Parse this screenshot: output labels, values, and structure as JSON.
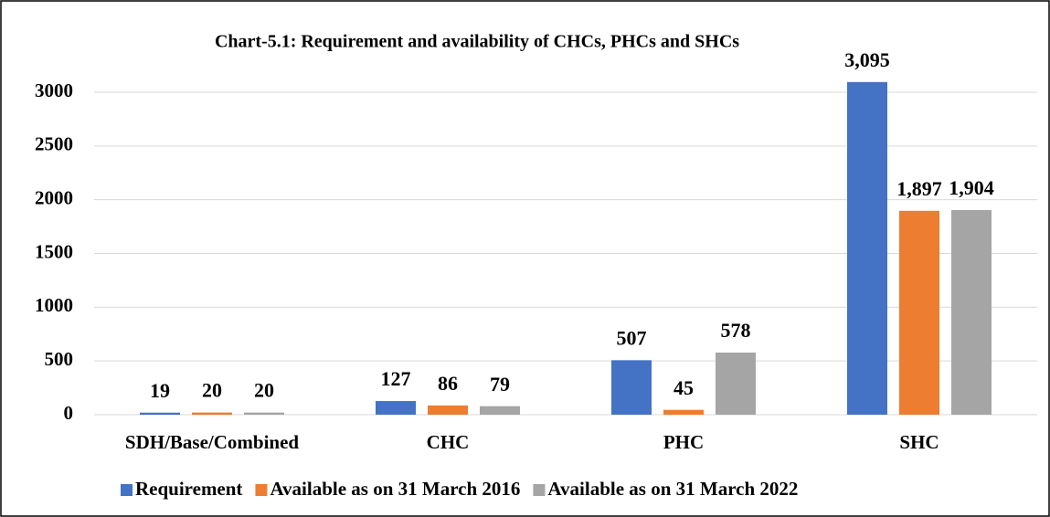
{
  "chart_data": {
    "type": "bar",
    "title": "Chart-5.1: Requirement and availability of CHCs, PHCs and SHCs",
    "categories": [
      "SDH/Base/Combined",
      "CHC",
      "PHC",
      "SHC"
    ],
    "series": [
      {
        "name": "Requirement",
        "color": "#4472c4",
        "values": [
          19,
          127,
          507,
          3095
        ],
        "value_labels": [
          "19",
          "127",
          "507",
          "3,095"
        ]
      },
      {
        "name": "Available as on 31 March 2016",
        "color": "#ed7d31",
        "values": [
          20,
          86,
          45,
          1897
        ],
        "value_labels": [
          "20",
          "86",
          "45",
          "1,897"
        ]
      },
      {
        "name": "Available as on 31 March 2022",
        "color": "#a5a5a5",
        "values": [
          20,
          79,
          578,
          1904
        ],
        "value_labels": [
          "20",
          "79",
          "578",
          "1,904"
        ]
      }
    ],
    "ylim": [
      0,
      3000
    ],
    "yticks": [
      0,
      500,
      1000,
      1500,
      2000,
      2500,
      3000
    ],
    "grid": true,
    "legend": "bottom"
  }
}
